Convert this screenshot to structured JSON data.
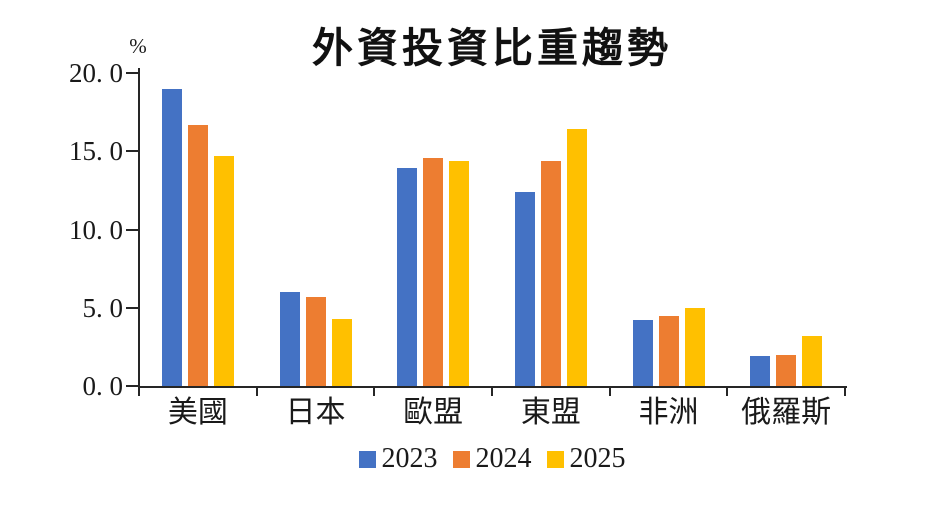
{
  "chart_data": {
    "type": "bar",
    "title": "外資投資比重趨勢",
    "unit_label": "%",
    "xlabel": "",
    "ylabel": "%",
    "categories": [
      "美國",
      "日本",
      "歐盟",
      "東盟",
      "非洲",
      "俄羅斯"
    ],
    "series": [
      {
        "name": "2023",
        "color": "#4472C4",
        "values": [
          19.0,
          6.0,
          13.9,
          12.4,
          4.2,
          1.9
        ]
      },
      {
        "name": "2024",
        "color": "#ED7D31",
        "values": [
          16.7,
          5.7,
          14.6,
          14.4,
          4.5,
          2.0
        ]
      },
      {
        "name": "2025",
        "color": "#FFC000",
        "values": [
          14.7,
          4.3,
          14.4,
          16.4,
          5.0,
          3.2
        ]
      }
    ],
    "ylim": [
      0,
      20
    ],
    "y_ticks": [
      {
        "value": 0,
        "label": "0. 0"
      },
      {
        "value": 5,
        "label": "5. 0"
      },
      {
        "value": 10,
        "label": "10. 0"
      },
      {
        "value": 15,
        "label": "15. 0"
      },
      {
        "value": 20,
        "label": "20. 0"
      }
    ],
    "grid": false,
    "legend_position": "bottom",
    "axis_color": "#262626",
    "text_color": "#1a1a1a"
  }
}
